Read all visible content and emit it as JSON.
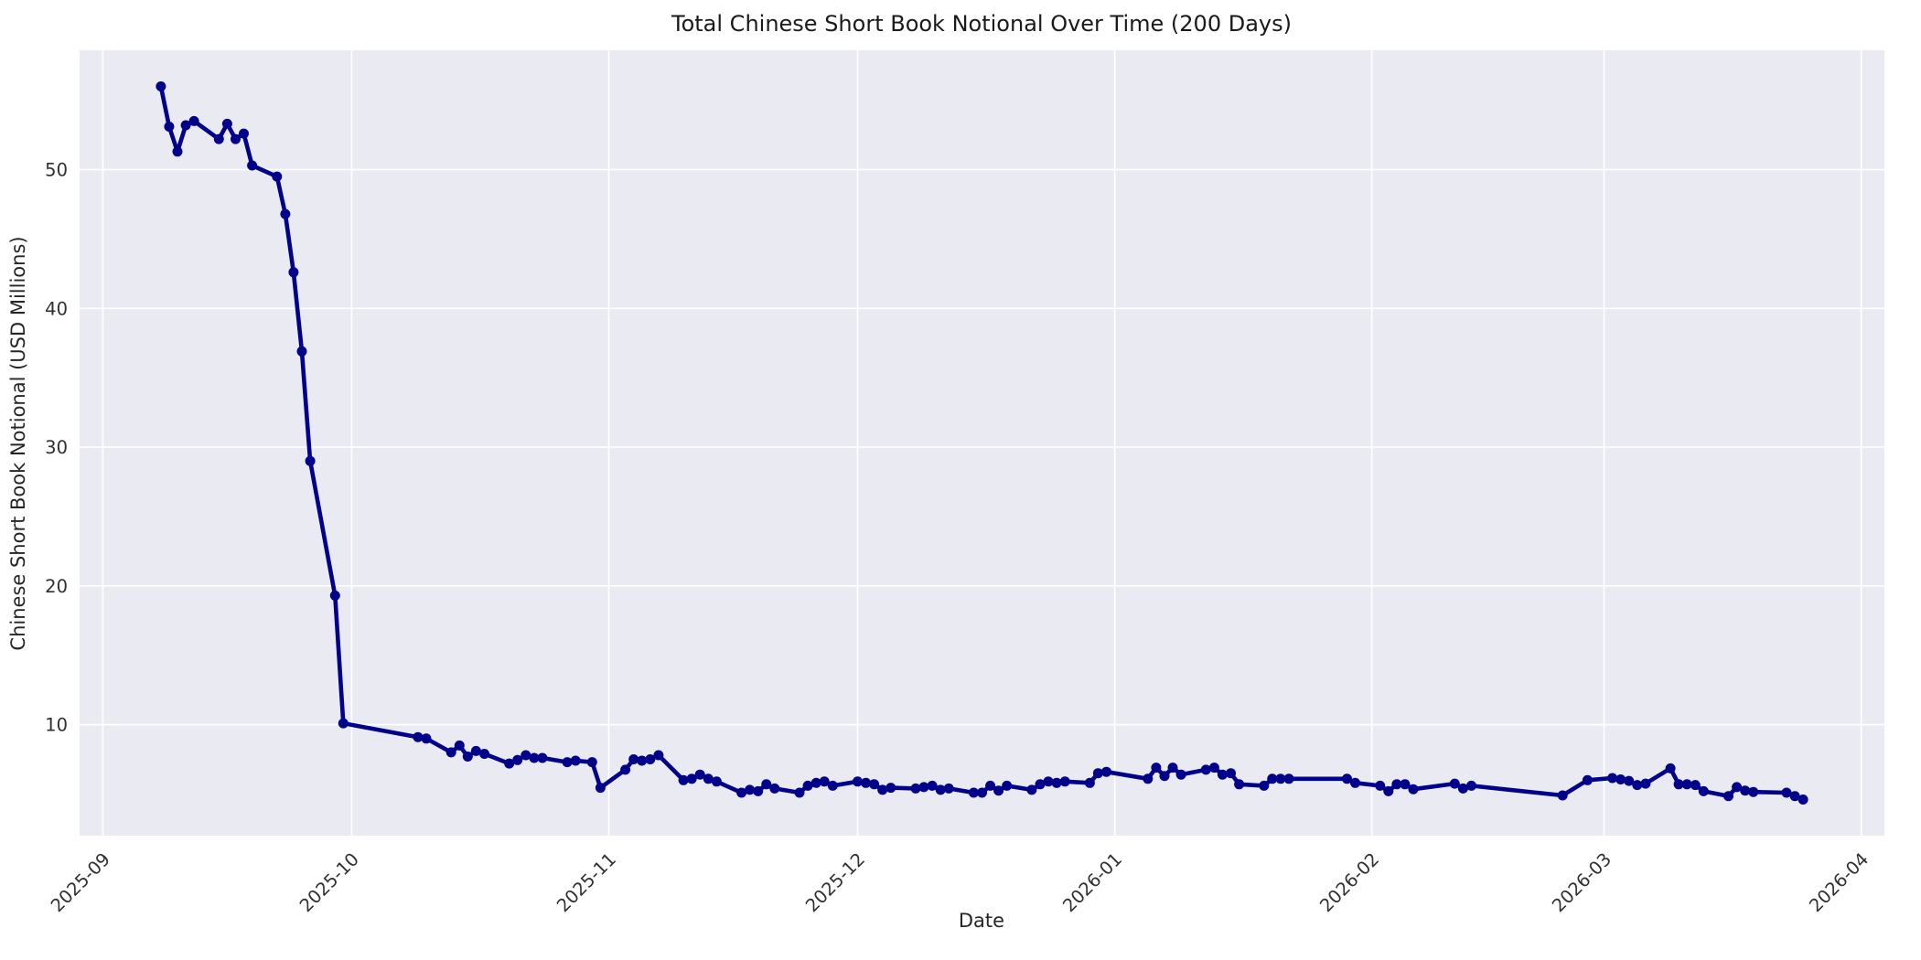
{
  "chart_data": {
    "type": "line",
    "title": "Total Chinese Short Book Notional Over Time (200 Days)",
    "xlabel": "Date",
    "ylabel": "Chinese Short Book Notional (USD Millions)",
    "legend": false,
    "grid": true,
    "plot_bg_color": "#eaeaf2",
    "grid_color": "#ffffff",
    "line_color": "#00008b",
    "x_ref_date": "2025-09-01",
    "xlim_days": [
      -2.8,
      214.8
    ],
    "ylim": [
      2.0,
      58.6
    ],
    "x_ticks": [
      "2025-09",
      "2025-10",
      "2025-11",
      "2025-12",
      "2026-01",
      "2026-02",
      "2026-03",
      "2026-04"
    ],
    "y_ticks": [
      10,
      20,
      30,
      40,
      50
    ],
    "series": [
      {
        "name": "Total Chinese Short Book Notional",
        "dates": [
          "2025-09-08",
          "2025-09-09",
          "2025-09-10",
          "2025-09-11",
          "2025-09-12",
          "2025-09-15",
          "2025-09-16",
          "2025-09-17",
          "2025-09-18",
          "2025-09-19",
          "2025-09-22",
          "2025-09-23",
          "2025-09-24",
          "2025-09-25",
          "2025-09-26",
          "2025-09-29",
          "2025-09-30",
          "2025-10-09",
          "2025-10-10",
          "2025-10-13",
          "2025-10-14",
          "2025-10-15",
          "2025-10-16",
          "2025-10-17",
          "2025-10-20",
          "2025-10-21",
          "2025-10-22",
          "2025-10-23",
          "2025-10-24",
          "2025-10-27",
          "2025-10-28",
          "2025-10-30",
          "2025-10-31",
          "2025-11-03",
          "2025-11-04",
          "2025-11-05",
          "2025-11-06",
          "2025-11-07",
          "2025-11-10",
          "2025-11-11",
          "2025-11-12",
          "2025-11-13",
          "2025-11-14",
          "2025-11-17",
          "2025-11-18",
          "2025-11-19",
          "2025-11-20",
          "2025-11-21",
          "2025-11-24",
          "2025-11-25",
          "2025-11-26",
          "2025-11-27",
          "2025-11-28",
          "2025-12-01",
          "2025-12-02",
          "2025-12-03",
          "2025-12-04",
          "2025-12-05",
          "2025-12-08",
          "2025-12-09",
          "2025-12-10",
          "2025-12-11",
          "2025-12-12",
          "2025-12-15",
          "2025-12-16",
          "2025-12-17",
          "2025-12-18",
          "2025-12-19",
          "2025-12-22",
          "2025-12-23",
          "2025-12-24",
          "2025-12-25",
          "2025-12-26",
          "2025-12-29",
          "2025-12-30",
          "2025-12-31",
          "2026-01-05",
          "2026-01-06",
          "2026-01-07",
          "2026-01-08",
          "2026-01-09",
          "2026-01-12",
          "2026-01-13",
          "2026-01-14",
          "2026-01-15",
          "2026-01-16",
          "2026-01-19",
          "2026-01-20",
          "2026-01-21",
          "2026-01-22",
          "2026-01-29",
          "2026-01-30",
          "2026-02-02",
          "2026-02-03",
          "2026-02-04",
          "2026-02-05",
          "2026-02-06",
          "2026-02-11",
          "2026-02-12",
          "2026-02-13",
          "2026-02-24",
          "2026-02-27",
          "2026-03-02",
          "2026-03-03",
          "2026-03-04",
          "2026-03-05",
          "2026-03-06",
          "2026-03-09",
          "2026-03-10",
          "2026-03-11",
          "2026-03-12",
          "2026-03-13",
          "2026-03-16",
          "2026-03-17",
          "2026-03-18",
          "2026-03-19",
          "2026-03-23",
          "2026-03-24",
          "2026-03-25"
        ],
        "values": [
          56.0,
          53.1,
          51.3,
          53.2,
          53.5,
          52.2,
          53.3,
          52.2,
          52.6,
          50.3,
          49.5,
          46.8,
          42.6,
          36.9,
          29.0,
          19.3,
          10.1,
          9.1,
          9.0,
          8.0,
          8.5,
          7.7,
          8.1,
          7.9,
          7.2,
          7.45,
          7.8,
          7.6,
          7.6,
          7.3,
          7.4,
          7.3,
          5.45,
          6.75,
          7.5,
          7.4,
          7.5,
          7.8,
          6.0,
          6.1,
          6.4,
          6.1,
          5.9,
          5.1,
          5.3,
          5.2,
          5.7,
          5.4,
          5.1,
          5.6,
          5.8,
          5.9,
          5.6,
          5.9,
          5.8,
          5.7,
          5.3,
          5.45,
          5.4,
          5.5,
          5.6,
          5.3,
          5.4,
          5.1,
          5.1,
          5.6,
          5.25,
          5.6,
          5.3,
          5.7,
          5.9,
          5.8,
          5.9,
          5.8,
          6.5,
          6.6,
          6.1,
          6.9,
          6.3,
          6.9,
          6.4,
          6.75,
          6.9,
          6.4,
          6.5,
          5.7,
          5.6,
          6.1,
          6.1,
          6.1,
          6.1,
          5.8,
          5.6,
          5.2,
          5.7,
          5.7,
          5.35,
          5.75,
          5.4,
          5.6,
          4.9,
          6.0,
          6.15,
          6.05,
          5.95,
          5.65,
          5.75,
          6.85,
          5.7,
          5.7,
          5.65,
          5.2,
          4.85,
          5.5,
          5.25,
          5.15,
          5.1,
          4.85,
          4.6
        ]
      }
    ]
  }
}
